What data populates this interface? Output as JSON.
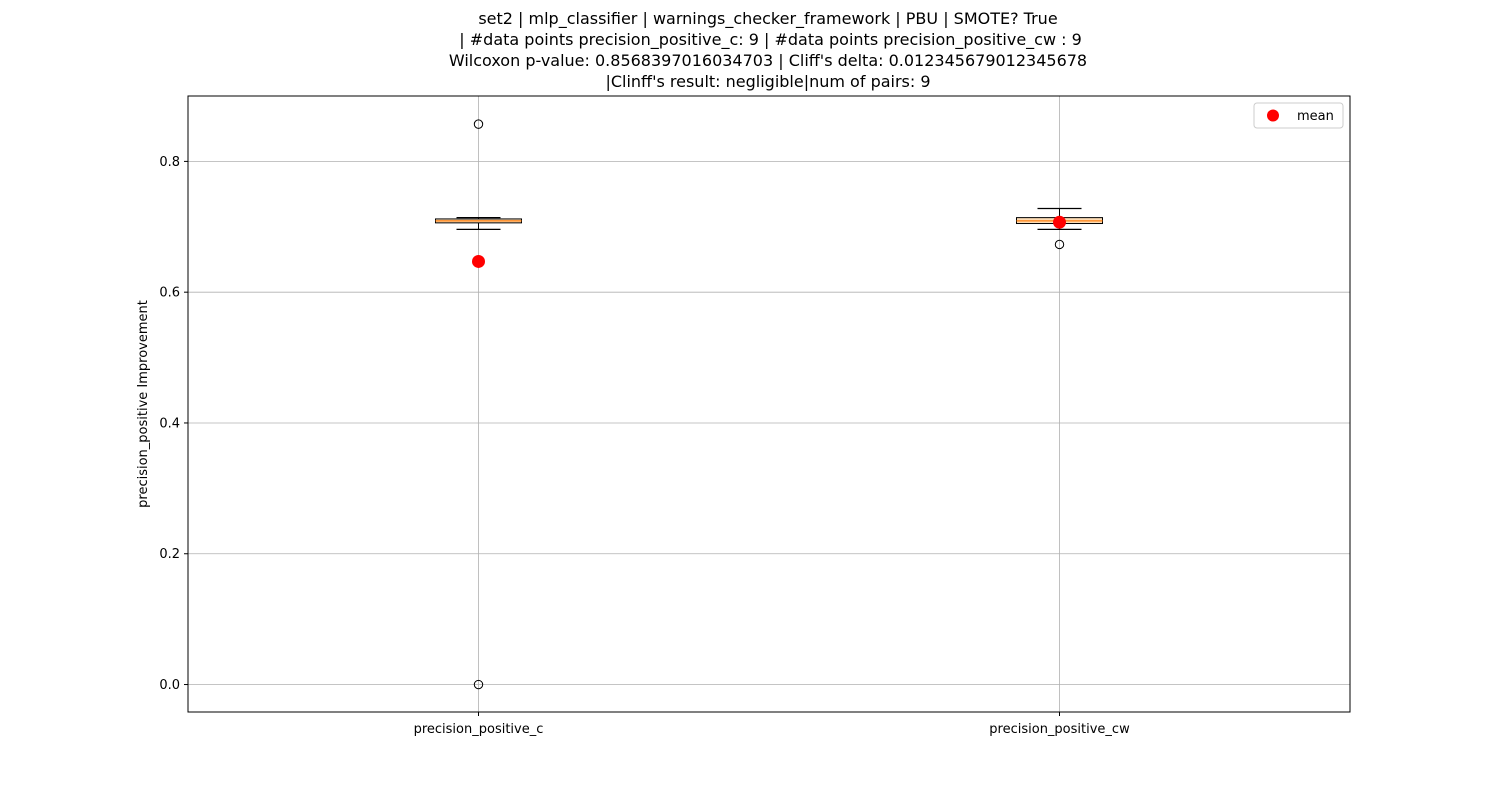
{
  "title_lines": [
    "set2 | mlp_classifier | warnings_checker_framework | PBU | SMOTE? True",
    " | #data points precision_positive_c: 9 | #data points precision_positive_cw : 9",
    "Wilcoxon p-value: 0.8568397016034703 | Cliff's delta: 0.012345679012345678",
    "|Clinff's result: negligible|num of pairs: 9"
  ],
  "chart_data": {
    "type": "boxplot",
    "ylabel": "precision_positive Improvement",
    "xlabel": "",
    "ylim": [
      -0.042,
      0.9
    ],
    "yticks": [
      0.0,
      0.2,
      0.4,
      0.6,
      0.8
    ],
    "ytick_labels": [
      "0.0",
      "0.2",
      "0.4",
      "0.6",
      "0.8"
    ],
    "grid": true,
    "legend": {
      "position": "top-right",
      "entries": [
        {
          "label": "mean",
          "color": "#ff0000",
          "marker": "circle"
        }
      ]
    },
    "categories": [
      "precision_positive_c",
      "precision_positive_cw"
    ],
    "boxes": [
      {
        "name": "precision_positive_c",
        "whisker_low": 0.696,
        "q1": 0.706,
        "median": 0.709,
        "q3": 0.712,
        "whisker_high": 0.714,
        "outliers": [
          0.857,
          0.0
        ],
        "mean": 0.647
      },
      {
        "name": "precision_positive_cw",
        "whisker_low": 0.696,
        "q1": 0.705,
        "median": 0.709,
        "q3": 0.714,
        "whisker_high": 0.728,
        "outliers": [
          0.673
        ],
        "mean": 0.707
      }
    ],
    "colors": {
      "box_face": "#fddcb5",
      "median": "#ff7f0e",
      "mean": "#ff0000",
      "grid": "#b0b0b0"
    }
  }
}
